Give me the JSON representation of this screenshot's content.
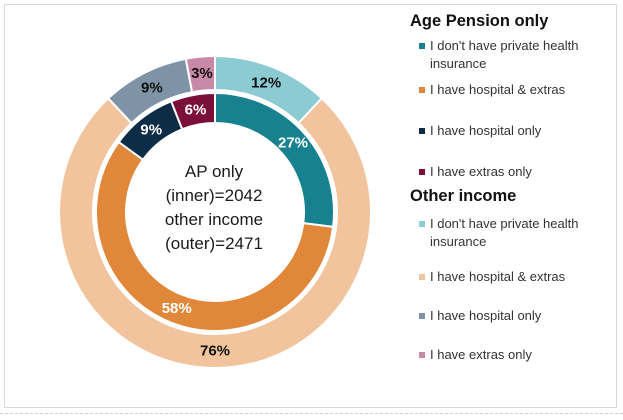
{
  "chart_data": {
    "type": "pie",
    "center_label_lines": [
      "AP only",
      "(inner)=2042",
      "other income",
      "(outer)=2471"
    ],
    "series": [
      {
        "name": "Age Pension only",
        "ring": "inner",
        "categories": [
          "I don't have private health insurance",
          "I have hospital & extras",
          "I have hospital only",
          "I have extras only"
        ],
        "values": [
          27,
          58,
          9,
          6
        ],
        "value_labels": [
          "27%",
          "58%",
          "9%",
          "6%"
        ],
        "colors": [
          "#17818f",
          "#e0873a",
          "#0d2d47",
          "#7a1039"
        ]
      },
      {
        "name": "Other income",
        "ring": "outer",
        "categories": [
          "I don't have private health insurance",
          "I have hospital & extras",
          "I have hospital only",
          "I have extras only"
        ],
        "values": [
          12,
          76,
          9,
          3
        ],
        "value_labels": [
          "12%",
          "76%",
          "9%",
          "3%"
        ],
        "colors": [
          "#8ccbd1",
          "#f2c49e",
          "#7f93a6",
          "#c888a8"
        ]
      }
    ]
  },
  "legend": {
    "groups": [
      {
        "title": "Age Pension only",
        "items": [
          {
            "label": "I don't have private health insurance",
            "color": "#17818f"
          },
          {
            "label": "I have hospital & extras",
            "color": "#e0873a"
          },
          {
            "label": "I have hospital only",
            "color": "#0d2d47"
          },
          {
            "label": "I have extras only",
            "color": "#7a1039"
          }
        ]
      },
      {
        "title": "Other income",
        "items": [
          {
            "label": "I don't have private health insurance",
            "color": "#8ccbd1"
          },
          {
            "label": "I have hospital & extras",
            "color": "#f2c49e"
          },
          {
            "label": "I have hospital only",
            "color": "#7f93a6"
          },
          {
            "label": "I have extras only",
            "color": "#c888a8"
          }
        ]
      }
    ]
  }
}
